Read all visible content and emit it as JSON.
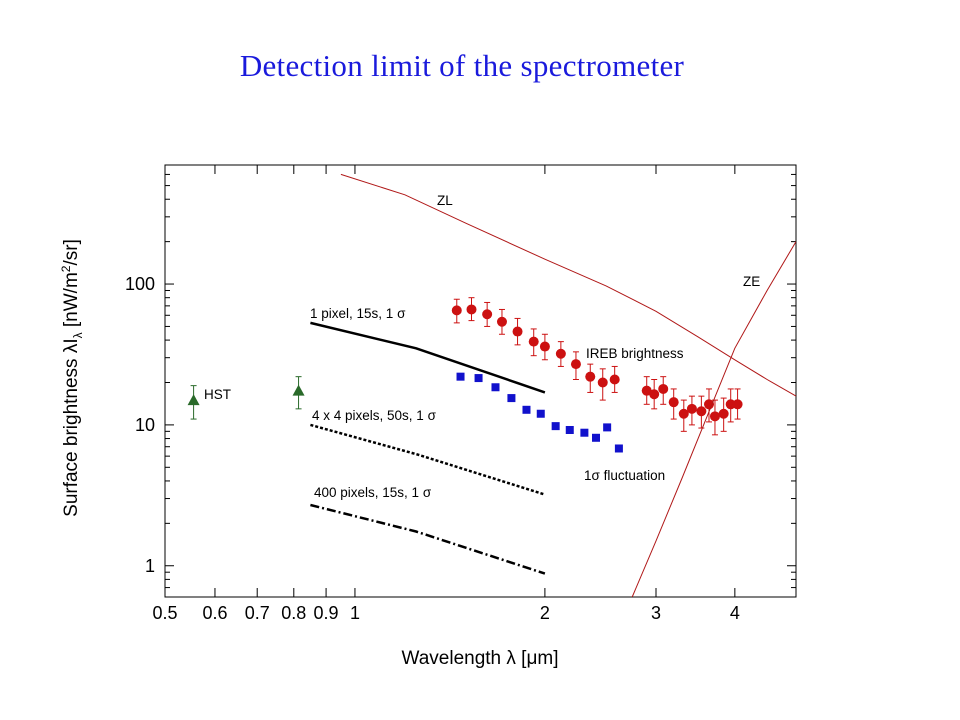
{
  "slide": {
    "title": "Detection limit of the spectrometer"
  },
  "colors": {
    "ireb": "#cc1111",
    "fluct": "#1111cc",
    "hst": "#2a6a2a",
    "model": "#b01818",
    "sensitivity": "#000000"
  },
  "chart_data": {
    "type": "scatter",
    "xscale": "log",
    "yscale": "log",
    "xlim": [
      0.5,
      5.0
    ],
    "ylim": [
      0.6,
      700
    ],
    "xlabel": "Wavelength λ [μm]",
    "ylabel": "Surface brightness λI  [nW/m²/sr]",
    "ylabel_main": "Surface brightness ",
    "ylabel_lambda": "λI",
    "ylabel_sub": "λ",
    "ylabel_units_a": " [nW/m",
    "ylabel_units_sup": "2",
    "ylabel_units_b": "/sr]",
    "xticks": [
      {
        "v": 0.5,
        "label": "0.5"
      },
      {
        "v": 0.6,
        "label": "0.6"
      },
      {
        "v": 0.7,
        "label": "0.7"
      },
      {
        "v": 0.8,
        "label": "0.8"
      },
      {
        "v": 0.9,
        "label": "0.9"
      },
      {
        "v": 1,
        "label": "1"
      },
      {
        "v": 2,
        "label": "2"
      },
      {
        "v": 3,
        "label": "3"
      },
      {
        "v": 4,
        "label": "4"
      }
    ],
    "yticks": [
      {
        "v": 1,
        "label": "1"
      },
      {
        "v": 10,
        "label": "10"
      },
      {
        "v": 100,
        "label": "100"
      }
    ],
    "series": [
      {
        "name": "IREB brightness",
        "kind": "points-errorbars",
        "marker": "circle",
        "color": "#cc1111",
        "points": [
          {
            "x": 1.45,
            "y": 65,
            "lo": 53,
            "hi": 78
          },
          {
            "x": 1.53,
            "y": 66,
            "lo": 55,
            "hi": 80
          },
          {
            "x": 1.62,
            "y": 61,
            "lo": 50,
            "hi": 74
          },
          {
            "x": 1.71,
            "y": 54,
            "lo": 44,
            "hi": 66
          },
          {
            "x": 1.81,
            "y": 46,
            "lo": 37,
            "hi": 57
          },
          {
            "x": 1.92,
            "y": 39,
            "lo": 31,
            "hi": 48
          },
          {
            "x": 2.0,
            "y": 36,
            "lo": 29,
            "hi": 44
          },
          {
            "x": 2.12,
            "y": 32,
            "lo": 26,
            "hi": 39
          },
          {
            "x": 2.24,
            "y": 27,
            "lo": 21,
            "hi": 33
          },
          {
            "x": 2.36,
            "y": 22,
            "lo": 17,
            "hi": 27
          },
          {
            "x": 2.47,
            "y": 20,
            "lo": 15,
            "hi": 25
          },
          {
            "x": 2.58,
            "y": 21,
            "lo": 17,
            "hi": 26
          },
          {
            "x": 2.9,
            "y": 17.5,
            "lo": 14,
            "hi": 22
          },
          {
            "x": 2.98,
            "y": 16.5,
            "lo": 13,
            "hi": 21
          },
          {
            "x": 3.08,
            "y": 18,
            "lo": 14,
            "hi": 22
          },
          {
            "x": 3.2,
            "y": 14.5,
            "lo": 11,
            "hi": 18
          },
          {
            "x": 3.32,
            "y": 12,
            "lo": 9,
            "hi": 15
          },
          {
            "x": 3.42,
            "y": 13,
            "lo": 10,
            "hi": 16
          },
          {
            "x": 3.54,
            "y": 12.5,
            "lo": 9.5,
            "hi": 16
          },
          {
            "x": 3.64,
            "y": 14,
            "lo": 10.5,
            "hi": 18
          },
          {
            "x": 3.72,
            "y": 11.5,
            "lo": 8.5,
            "hi": 15
          },
          {
            "x": 3.84,
            "y": 12,
            "lo": 9,
            "hi": 15.5
          },
          {
            "x": 3.94,
            "y": 14,
            "lo": 10.5,
            "hi": 18
          },
          {
            "x": 4.04,
            "y": 14,
            "lo": 11,
            "hi": 18
          }
        ]
      },
      {
        "name": "1σ fluctuation",
        "kind": "points",
        "marker": "square",
        "color": "#1111cc",
        "points": [
          {
            "x": 1.47,
            "y": 22
          },
          {
            "x": 1.57,
            "y": 21.5
          },
          {
            "x": 1.67,
            "y": 18.5
          },
          {
            "x": 1.77,
            "y": 15.5
          },
          {
            "x": 1.87,
            "y": 12.8
          },
          {
            "x": 1.97,
            "y": 12
          },
          {
            "x": 2.08,
            "y": 9.8
          },
          {
            "x": 2.19,
            "y": 9.2
          },
          {
            "x": 2.31,
            "y": 8.8
          },
          {
            "x": 2.41,
            "y": 8.1
          },
          {
            "x": 2.51,
            "y": 9.6
          },
          {
            "x": 2.62,
            "y": 6.8
          }
        ]
      },
      {
        "name": "HST",
        "kind": "points-errorbars",
        "marker": "triangle",
        "color": "#2a6a2a",
        "points": [
          {
            "x": 0.555,
            "y": 15,
            "lo": 11,
            "hi": 19
          },
          {
            "x": 0.814,
            "y": 17.5,
            "lo": 13,
            "hi": 22
          }
        ]
      },
      {
        "name": "1 pixel, 15s, 1 σ",
        "kind": "line",
        "dash": "solid",
        "color": "#000000",
        "points": [
          {
            "x": 0.85,
            "y": 53
          },
          {
            "x": 1.25,
            "y": 35
          },
          {
            "x": 2.0,
            "y": 17
          }
        ]
      },
      {
        "name": "4 x 4 pixels, 50s, 1 σ",
        "kind": "line",
        "dash": "dotted",
        "color": "#000000",
        "points": [
          {
            "x": 0.85,
            "y": 10
          },
          {
            "x": 1.25,
            "y": 6.2
          },
          {
            "x": 2.0,
            "y": 3.2
          }
        ]
      },
      {
        "name": "400 pixels, 15s, 1 σ",
        "kind": "line",
        "dash": "dashdot",
        "color": "#000000",
        "points": [
          {
            "x": 0.85,
            "y": 2.7
          },
          {
            "x": 1.25,
            "y": 1.75
          },
          {
            "x": 2.0,
            "y": 0.88
          }
        ]
      },
      {
        "name": "ZL",
        "kind": "line",
        "dash": "solid",
        "color": "#b01818",
        "points": [
          {
            "x": 0.95,
            "y": 600
          },
          {
            "x": 1.2,
            "y": 430
          },
          {
            "x": 1.5,
            "y": 270
          },
          {
            "x": 2.0,
            "y": 150
          },
          {
            "x": 2.5,
            "y": 97
          },
          {
            "x": 3.0,
            "y": 64
          },
          {
            "x": 3.5,
            "y": 42
          },
          {
            "x": 4.0,
            "y": 29
          },
          {
            "x": 4.5,
            "y": 21
          },
          {
            "x": 5.0,
            "y": 16
          }
        ]
      },
      {
        "name": "ZE",
        "kind": "line",
        "dash": "solid",
        "color": "#b01818",
        "points": [
          {
            "x": 2.75,
            "y": 0.6
          },
          {
            "x": 3.0,
            "y": 1.5
          },
          {
            "x": 3.3,
            "y": 4.2
          },
          {
            "x": 3.6,
            "y": 11
          },
          {
            "x": 4.0,
            "y": 35
          },
          {
            "x": 4.5,
            "y": 90
          },
          {
            "x": 5.0,
            "y": 200
          }
        ]
      }
    ],
    "annotations": {
      "zl": "ZL",
      "ze": "ZE",
      "ireb": "IREB brightness",
      "hst": "HST",
      "fluct_sigma": "1σ",
      "fluct_text": " fluctuation",
      "line1_text": "1 pixel, 15s, 1 ",
      "line2_text": "4 x 4 pixels, 50s, 1 ",
      "line3_text": "400 pixels, 15s, 1 ",
      "sigma": "σ"
    }
  }
}
